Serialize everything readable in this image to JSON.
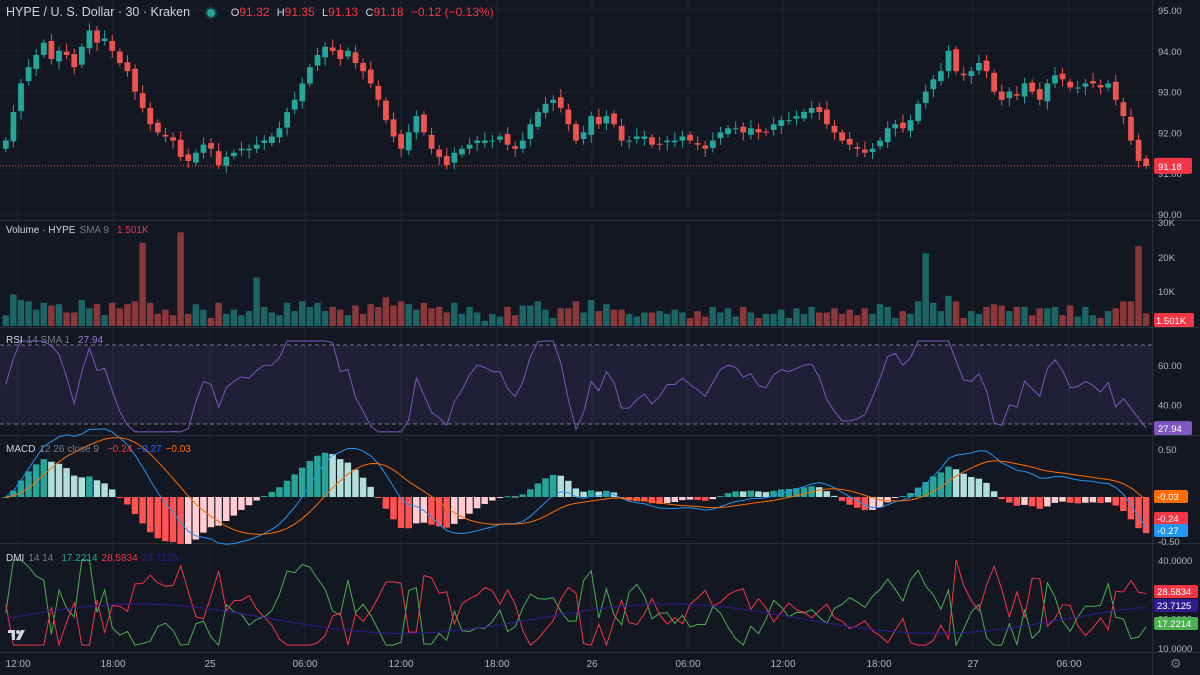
{
  "header": {
    "title": "HYPE / U. S. Dollar · 30 · Kraken",
    "status_color": "#26a69a",
    "o_label": "O",
    "o": "91.32",
    "h_label": "H",
    "h": "91.35",
    "l_label": "L",
    "l": "91.13",
    "c_label": "C",
    "c": "91.18",
    "change": "−0.12 (−0.13%)"
  },
  "legends": {
    "volume": {
      "name": "Volume · HYPE",
      "params": "SMA 9",
      "value": "1.501K"
    },
    "rsi": {
      "name": "RSI",
      "params": "14 SMA 1",
      "value": "27.94"
    },
    "macd": {
      "name": "MACD",
      "params": "12 26 close 9",
      "v1": "−0.24",
      "v2": "−0.27",
      "v3": "−0.03"
    },
    "dmi": {
      "name": "DMI",
      "params": "14 14",
      "v1": "17.2214",
      "v2": "28.5834",
      "v3": "23.7125"
    }
  },
  "price_axis": {
    "labels": [
      "95.00",
      "94.00",
      "93.00",
      "92.00",
      "91.00",
      "90.00"
    ],
    "last_badge": "91.18"
  },
  "volume_axis": {
    "labels": [
      "30K",
      "20K",
      "10K"
    ],
    "last_badge": "1.501K"
  },
  "rsi_axis": {
    "labels": [
      "60.00",
      "40.00"
    ],
    "last_badge": "27.94"
  },
  "macd_axis": {
    "labels": [
      "0.50",
      "-0.50"
    ],
    "badges": [
      "-0.03",
      "-0.24",
      "-0.27"
    ]
  },
  "dmi_axis": {
    "labels": [
      "40.0000",
      "30.0000",
      "20.0000",
      "10.0000"
    ],
    "badges": [
      "28.5834",
      "23.7125",
      "17.2214"
    ]
  },
  "time_axis": {
    "labels": [
      "12:00",
      "18:00",
      "25",
      "06:00",
      "12:00",
      "18:00",
      "26",
      "06:00",
      "12:00",
      "18:00",
      "27",
      "06:00"
    ]
  },
  "colors": {
    "up": "#26a69a",
    "down": "#ef5350",
    "rsi": "#7e57c2",
    "macd": "#2196f3",
    "signal": "#ff6d00",
    "dmi_plus": "#4caf50",
    "dmi_minus": "#f23645",
    "adx": "#311b92"
  },
  "chart_data": [
    {
      "type": "candlestick",
      "title": "HYPE / U. S. Dollar · 30 · Kraken",
      "ylim": [
        90.0,
        95.0
      ],
      "closes": [
        91.8,
        92.5,
        93.2,
        93.6,
        93.9,
        94.2,
        93.8,
        94.0,
        93.9,
        93.6,
        94.1,
        94.5,
        94.2,
        94.3,
        94.0,
        93.7,
        93.5,
        93.0,
        92.6,
        92.2,
        92.0,
        91.9,
        91.8,
        91.4,
        91.3,
        91.5,
        91.7,
        91.6,
        91.2,
        91.4,
        91.5,
        91.6,
        91.6,
        91.7,
        91.8,
        91.9,
        92.1,
        92.5,
        92.8,
        93.2,
        93.6,
        93.9,
        94.1,
        94.0,
        93.8,
        94.0,
        93.7,
        93.5,
        93.2,
        92.8,
        92.3,
        91.9,
        91.6,
        92.0,
        92.4,
        92.0,
        91.6,
        91.4,
        91.2,
        91.5,
        91.6,
        91.7,
        91.8,
        91.8,
        91.8,
        91.9,
        91.7,
        91.6,
        91.8,
        92.2,
        92.5,
        92.7,
        92.8,
        92.6,
        92.2,
        91.8,
        92.0,
        92.4,
        92.2,
        92.4,
        92.2,
        91.8,
        91.8,
        91.9,
        91.9,
        91.7,
        91.7,
        91.8,
        91.8,
        91.9,
        91.8,
        91.7,
        91.6,
        91.8,
        92.0,
        92.1,
        92.1,
        92.0,
        92.1,
        92.0,
        92.0,
        92.2,
        92.3,
        92.3,
        92.4,
        92.5,
        92.6,
        92.5,
        92.2,
        92.0,
        91.8,
        91.7,
        91.6,
        91.5,
        91.6,
        91.8,
        92.1,
        92.2,
        92.1,
        92.3,
        92.7,
        93.0,
        93.3,
        93.5,
        94.0,
        93.5,
        93.4,
        93.5,
        93.7,
        93.5,
        93.0,
        92.8,
        93.0,
        92.9,
        93.2,
        93.0,
        92.8,
        93.2,
        93.4,
        93.3,
        93.1,
        93.1,
        93.2,
        93.2,
        93.1,
        93.2,
        92.8,
        92.4,
        91.8,
        91.3,
        91.18
      ]
    },
    {
      "type": "bar",
      "title": "Volume · HYPE",
      "ylim": [
        0,
        30000
      ],
      "last": 1501,
      "spikes": [
        {
          "index": 18,
          "value": 24000
        },
        {
          "index": 23,
          "value": 27000
        },
        {
          "index": 33,
          "value": 14000
        },
        {
          "index": 149,
          "value": 23000
        },
        {
          "index": 121,
          "value": 21000
        }
      ]
    },
    {
      "type": "line",
      "title": "RSI",
      "ylim": [
        20,
        80
      ],
      "bands": [
        30,
        70
      ],
      "last": 27.94
    },
    {
      "type": "line",
      "title": "MACD",
      "series": [
        {
          "name": "MACD"
        },
        {
          "name": "Signal"
        },
        {
          "name": "Histogram"
        }
      ],
      "last": [
        -0.24,
        -0.27,
        -0.03
      ]
    },
    {
      "type": "line",
      "title": "DMI",
      "ylim": [
        8,
        42
      ],
      "series": [
        {
          "name": "+DI"
        },
        {
          "name": "-DI"
        },
        {
          "name": "ADX"
        }
      ],
      "last": [
        17.2214,
        28.5834,
        23.7125
      ]
    }
  ]
}
